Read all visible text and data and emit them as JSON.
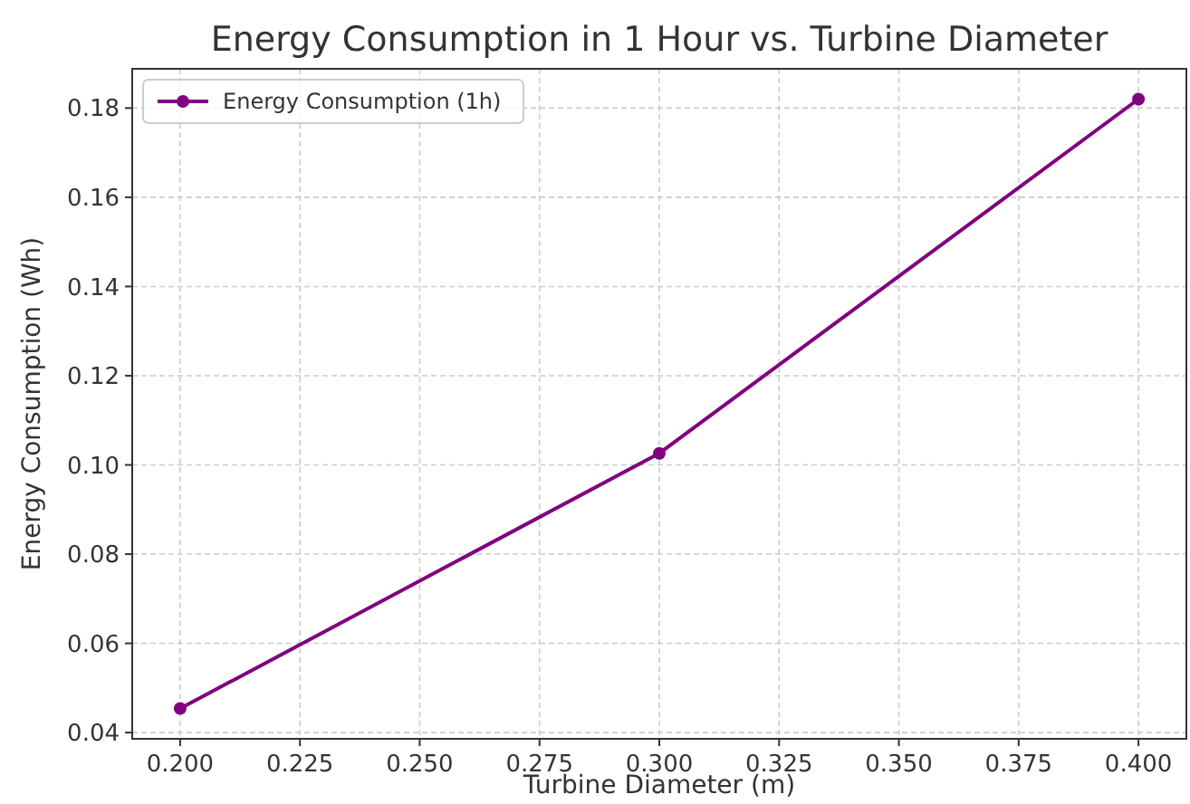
{
  "chart_data": {
    "type": "line",
    "title": "Energy Consumption in 1 Hour vs. Turbine Diameter",
    "xlabel": "Turbine Diameter (m)",
    "ylabel": "Energy Consumption (Wh)",
    "x": [
      0.2,
      0.3,
      0.4
    ],
    "series": [
      {
        "name": "Energy Consumption (1h)",
        "color": "#800080",
        "values": [
          0.0454,
          0.1026,
          0.182
        ]
      }
    ],
    "xlim": [
      0.19,
      0.41
    ],
    "xticks": [
      {
        "value": 0.2,
        "label": "0.200"
      },
      {
        "value": 0.225,
        "label": "0.225"
      },
      {
        "value": 0.25,
        "label": "0.250"
      },
      {
        "value": 0.275,
        "label": "0.275"
      },
      {
        "value": 0.3,
        "label": "0.300"
      },
      {
        "value": 0.325,
        "label": "0.325"
      },
      {
        "value": 0.35,
        "label": "0.350"
      },
      {
        "value": 0.375,
        "label": "0.375"
      },
      {
        "value": 0.4,
        "label": "0.400"
      }
    ],
    "ylim": [
      0.0386,
      0.1888
    ],
    "yticks": [
      {
        "value": 0.04,
        "label": "0.04"
      },
      {
        "value": 0.06,
        "label": "0.06"
      },
      {
        "value": 0.08,
        "label": "0.08"
      },
      {
        "value": 0.1,
        "label": "0.10"
      },
      {
        "value": 0.12,
        "label": "0.12"
      },
      {
        "value": 0.14,
        "label": "0.14"
      },
      {
        "value": 0.16,
        "label": "0.16"
      },
      {
        "value": 0.18,
        "label": "0.18"
      }
    ],
    "grid": true,
    "legend": "top left",
    "marker": "circle",
    "line_style": "solid"
  }
}
